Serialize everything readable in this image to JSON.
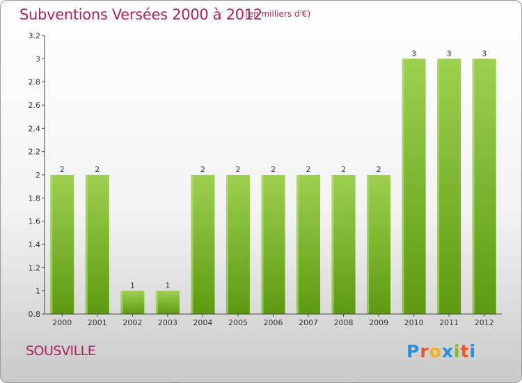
{
  "header": {
    "title": "Subventions Versées 2000 à 2012",
    "subtitle": "(en milliers d'€)"
  },
  "footer": {
    "commune": "SOUSVILLE",
    "logo_text": "Proxiti",
    "logo_colors": [
      "#2a8ed8",
      "#e8562a",
      "#f0b21a",
      "#2a8ed8",
      "#7bbf2a",
      "#e8562a",
      "#2a8ed8"
    ]
  },
  "colors": {
    "bar_top": "#9ed050",
    "bar_bottom": "#5d9a10",
    "bar_side": "#b8e080",
    "axis": "#444444"
  },
  "chart_data": {
    "type": "bar",
    "title": "Subventions Versées 2000 à 2012",
    "subtitle": "(en milliers d'€)",
    "categories": [
      "2000",
      "2001",
      "2002",
      "2003",
      "2004",
      "2005",
      "2006",
      "2007",
      "2008",
      "2009",
      "2010",
      "2011",
      "2012"
    ],
    "values": [
      2,
      2,
      1,
      1,
      2,
      2,
      2,
      2,
      2,
      2,
      3,
      3,
      3
    ],
    "data_labels": [
      "2",
      "2",
      "1",
      "1",
      "2",
      "2",
      "2",
      "2",
      "2",
      "2",
      "3",
      "3",
      "3"
    ],
    "ylim": [
      0.8,
      3.2
    ],
    "yticks": [
      0.8,
      1,
      1.2,
      1.4,
      1.6,
      1.8,
      2,
      2.2,
      2.4,
      2.6,
      2.8,
      3,
      3.2
    ],
    "ytick_labels": [
      "0.8",
      "1",
      "1.2",
      "1.4",
      "1.6",
      "1.8",
      "2",
      "2.2",
      "2.4",
      "2.6",
      "2.8",
      "3",
      "3.2"
    ],
    "grid": false,
    "legend": "none"
  }
}
